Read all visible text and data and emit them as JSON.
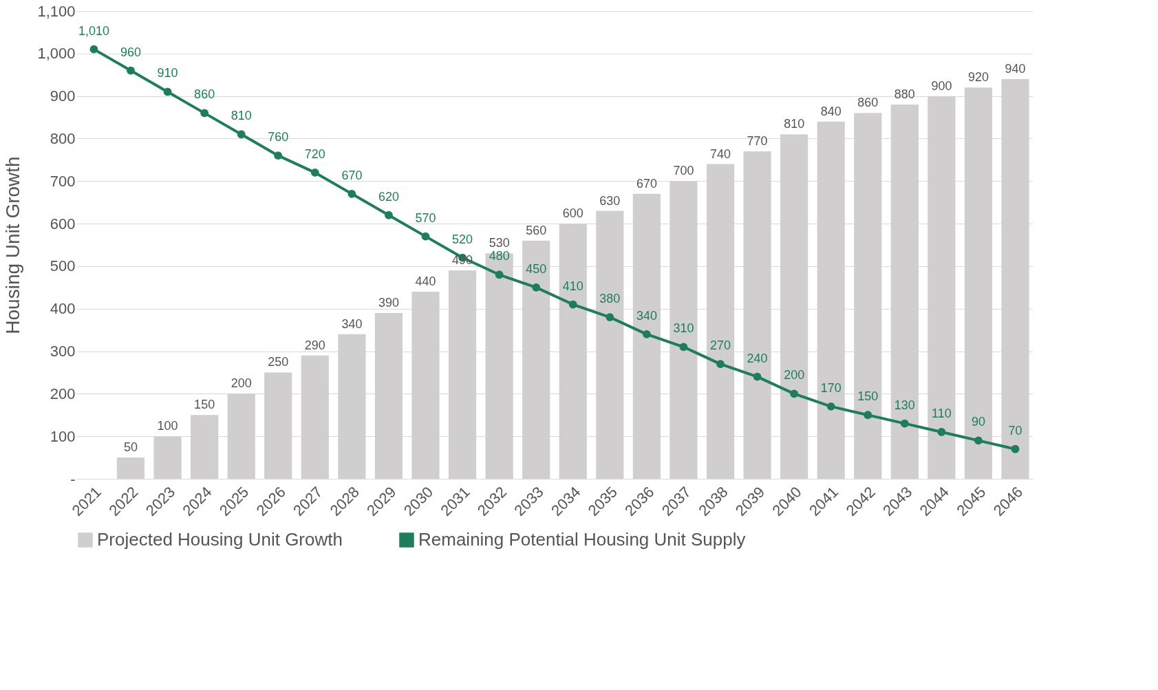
{
  "chart_data": {
    "type": "bar",
    "ylabel": "Housing Unit Growth",
    "categories": [
      "2021",
      "2022",
      "2023",
      "2024",
      "2025",
      "2026",
      "2027",
      "2028",
      "2029",
      "2030",
      "2031",
      "2032",
      "2033",
      "2034",
      "2035",
      "2036",
      "2037",
      "2038",
      "2039",
      "2040",
      "2041",
      "2042",
      "2043",
      "2044",
      "2045",
      "2046"
    ],
    "series": [
      {
        "name": "Projected Housing Unit Growth",
        "color": "#d0cecf",
        "values": [
          null,
          50,
          100,
          150,
          200,
          250,
          290,
          340,
          390,
          440,
          490,
          530,
          560,
          600,
          630,
          670,
          700,
          740,
          770,
          810,
          840,
          860,
          880,
          900,
          920,
          940
        ],
        "value_labels": [
          null,
          "50",
          "100",
          "150",
          "200",
          "250",
          "290",
          "340",
          "390",
          "440",
          "490",
          "530",
          "560",
          "600",
          "630",
          "670",
          "700",
          "740",
          "770",
          "810",
          "840",
          "860",
          "880",
          "900",
          "920",
          "940"
        ]
      },
      {
        "name": "Remaining Potential Housing Unit Supply",
        "type": "line",
        "color": "#1f7d5c",
        "marker": "circle",
        "values": [
          1010,
          960,
          910,
          860,
          810,
          760,
          720,
          670,
          620,
          570,
          520,
          480,
          450,
          410,
          380,
          340,
          310,
          270,
          240,
          200,
          170,
          150,
          130,
          110,
          90,
          70
        ],
        "value_labels": [
          "1,010",
          "960",
          "910",
          "860",
          "810",
          "760",
          "720",
          "670",
          "620",
          "570",
          "520",
          "480",
          "450",
          "410",
          "380",
          "340",
          "310",
          "270",
          "240",
          "200",
          "170",
          "150",
          "130",
          "110",
          "90",
          "70"
        ]
      }
    ],
    "ylim": [
      0,
      1100
    ],
    "yticks": [
      {
        "value": 0,
        "label": "-"
      },
      100,
      200,
      300,
      400,
      500,
      600,
      700,
      800,
      900,
      {
        "value": 1000,
        "label": "1,000"
      },
      {
        "value": 1100,
        "label": "1,100"
      }
    ],
    "grid": "y",
    "legend": "bottom"
  }
}
